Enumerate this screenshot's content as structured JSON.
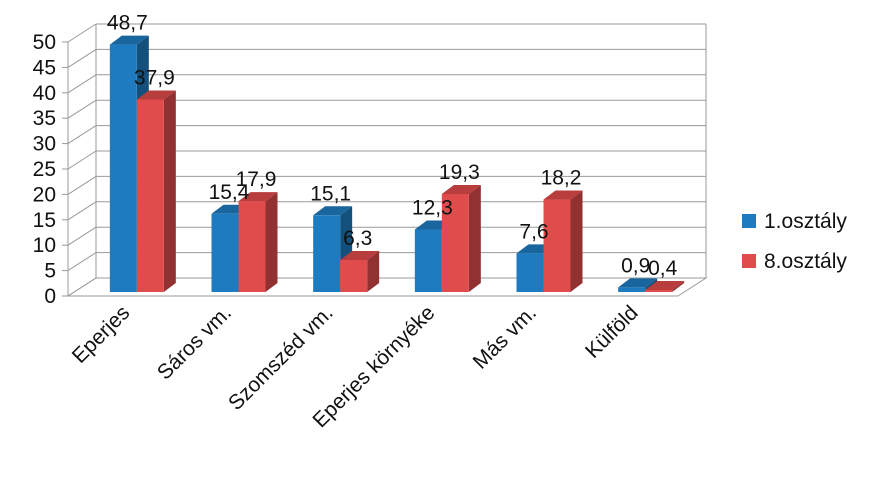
{
  "chart_data": {
    "type": "bar",
    "style": "3d-clustered-column",
    "categories": [
      "Eperjes",
      "Sáros vm.",
      "Szomszéd vm.",
      "Eperjes környéke",
      "Más vm.",
      "Külföld"
    ],
    "series": [
      {
        "name": "1.osztály",
        "color": "#1f7bbf",
        "values": [
          48.7,
          15.4,
          15.1,
          12.3,
          7.6,
          0.9
        ],
        "labels": [
          "48,7",
          "15,4",
          "15,1",
          "12,3",
          "7,6",
          "0,9"
        ]
      },
      {
        "name": "8.osztály",
        "color": "#e04b4b",
        "values": [
          37.9,
          17.9,
          6.3,
          19.3,
          18.2,
          0.4
        ],
        "labels": [
          "37,9",
          "17,9",
          "6,3",
          "19,3",
          "18,2",
          "0,4"
        ]
      }
    ],
    "ylim": [
      0,
      50
    ],
    "yticks": [
      "0",
      "5",
      "10",
      "15",
      "20",
      "25",
      "30",
      "35",
      "40",
      "45",
      "50"
    ],
    "grid": true,
    "legend_position": "right"
  }
}
